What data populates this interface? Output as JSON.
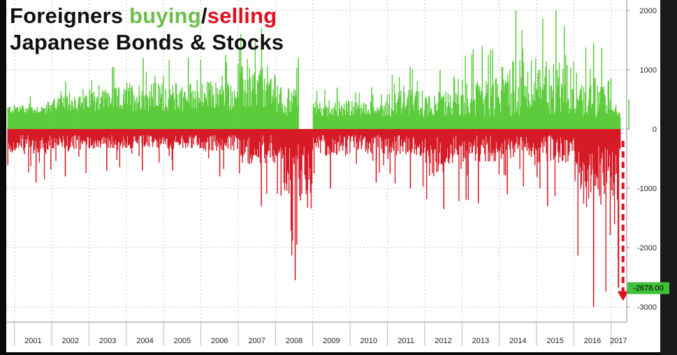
{
  "title": {
    "part1": "Foreigners ",
    "buying": "buying",
    "slash": "/",
    "selling": "selling",
    "line2": "Japanese Bonds & Stocks"
  },
  "colors": {
    "buy": "#5ccc3c",
    "sell": "#d61a26",
    "badge": "#3fbf3a",
    "grid": "#c8c8c8"
  },
  "chart_data": {
    "type": "bar",
    "title": "Foreigners buying/selling Japanese Bonds & Stocks",
    "xlabel": "",
    "ylabel": "",
    "ylim": [
      -3200,
      2100
    ],
    "yticks": [
      2000,
      1000,
      0,
      -1000,
      -2000,
      -3000
    ],
    "ytick_labels": [
      "2000",
      "1000",
      "0",
      "-1000",
      "-2000",
      "-3000"
    ],
    "x_range": [
      2000.8,
      2017.4
    ],
    "years": [
      "2001",
      "2002",
      "2003",
      "2004",
      "2005",
      "2006",
      "2007",
      "2008",
      "2009",
      "2010",
      "2011",
      "2012",
      "2013",
      "2014",
      "2015",
      "2016",
      "2017"
    ],
    "last_value_label": "-2678.00",
    "last_value": -2678,
    "projection_arrow": {
      "from": -200,
      "to": -2900
    },
    "weekly_buy_sell_series": [
      {
        "year": 2001,
        "buy_range": [
          250,
          550
        ],
        "sell_range": [
          -100,
          -900
        ]
      },
      {
        "year": 2002,
        "buy_range": [
          300,
          800
        ],
        "sell_range": [
          -100,
          -800
        ]
      },
      {
        "year": 2003,
        "buy_range": [
          300,
          1050
        ],
        "sell_range": [
          -100,
          -700
        ]
      },
      {
        "year": 2004,
        "buy_range": [
          300,
          1200
        ],
        "sell_range": [
          -100,
          -700
        ]
      },
      {
        "year": 2005,
        "buy_range": [
          300,
          1200
        ],
        "sell_range": [
          -100,
          -700
        ]
      },
      {
        "year": 2006,
        "buy_range": [
          300,
          1250
        ],
        "sell_range": [
          -100,
          -800
        ]
      },
      {
        "year": 2007,
        "buy_range": [
          300,
          1700
        ],
        "sell_range": [
          -100,
          -1300
        ]
      },
      {
        "year": 2008,
        "buy_range": [
          200,
          1200
        ],
        "sell_range": [
          -200,
          -2550
        ]
      },
      {
        "year": 2009,
        "buy_range": [
          200,
          700
        ],
        "sell_range": [
          -100,
          -1000
        ]
      },
      {
        "year": 2010,
        "buy_range": [
          200,
          700
        ],
        "sell_range": [
          -100,
          -900
        ]
      },
      {
        "year": 2011,
        "buy_range": [
          200,
          1050
        ],
        "sell_range": [
          -100,
          -1000
        ]
      },
      {
        "year": 2012,
        "buy_range": [
          200,
          1000
        ],
        "sell_range": [
          -100,
          -1350
        ]
      },
      {
        "year": 2013,
        "buy_range": [
          200,
          1400
        ],
        "sell_range": [
          -100,
          -1250
        ]
      },
      {
        "year": 2014,
        "buy_range": [
          200,
          2000
        ],
        "sell_range": [
          -100,
          -1100
        ]
      },
      {
        "year": 2015,
        "buy_range": [
          200,
          2000
        ],
        "sell_range": [
          -100,
          -1300
        ]
      },
      {
        "year": 2016,
        "buy_range": [
          200,
          1450
        ],
        "sell_range": [
          -200,
          -3000
        ]
      },
      {
        "year": 2017,
        "buy_range": [
          200,
          500
        ],
        "sell_range": [
          -200,
          -2678
        ]
      }
    ]
  }
}
